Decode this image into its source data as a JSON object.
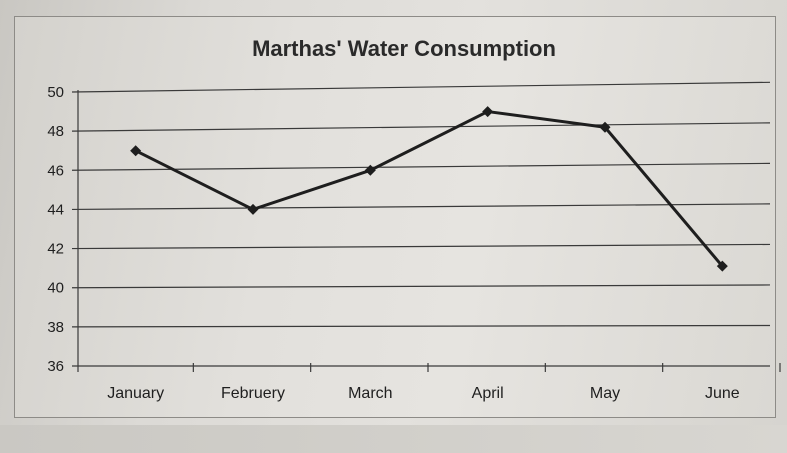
{
  "chart_data": {
    "type": "line",
    "title": "Marthas' Water Consumption",
    "xlabel": "",
    "ylabel": "",
    "categories": [
      "January",
      "Februery",
      "March",
      "April",
      "May",
      "June"
    ],
    "series": [
      {
        "values": [
          47,
          44,
          46,
          49,
          48.2,
          41.1
        ]
      }
    ],
    "ylim": [
      36,
      50
    ],
    "yticks": [
      36,
      38,
      40,
      42,
      44,
      46,
      48,
      50
    ],
    "grid": true,
    "legend": "none",
    "colors": {
      "line": "#1e1e1e",
      "grid": "#3a3a3a"
    }
  }
}
